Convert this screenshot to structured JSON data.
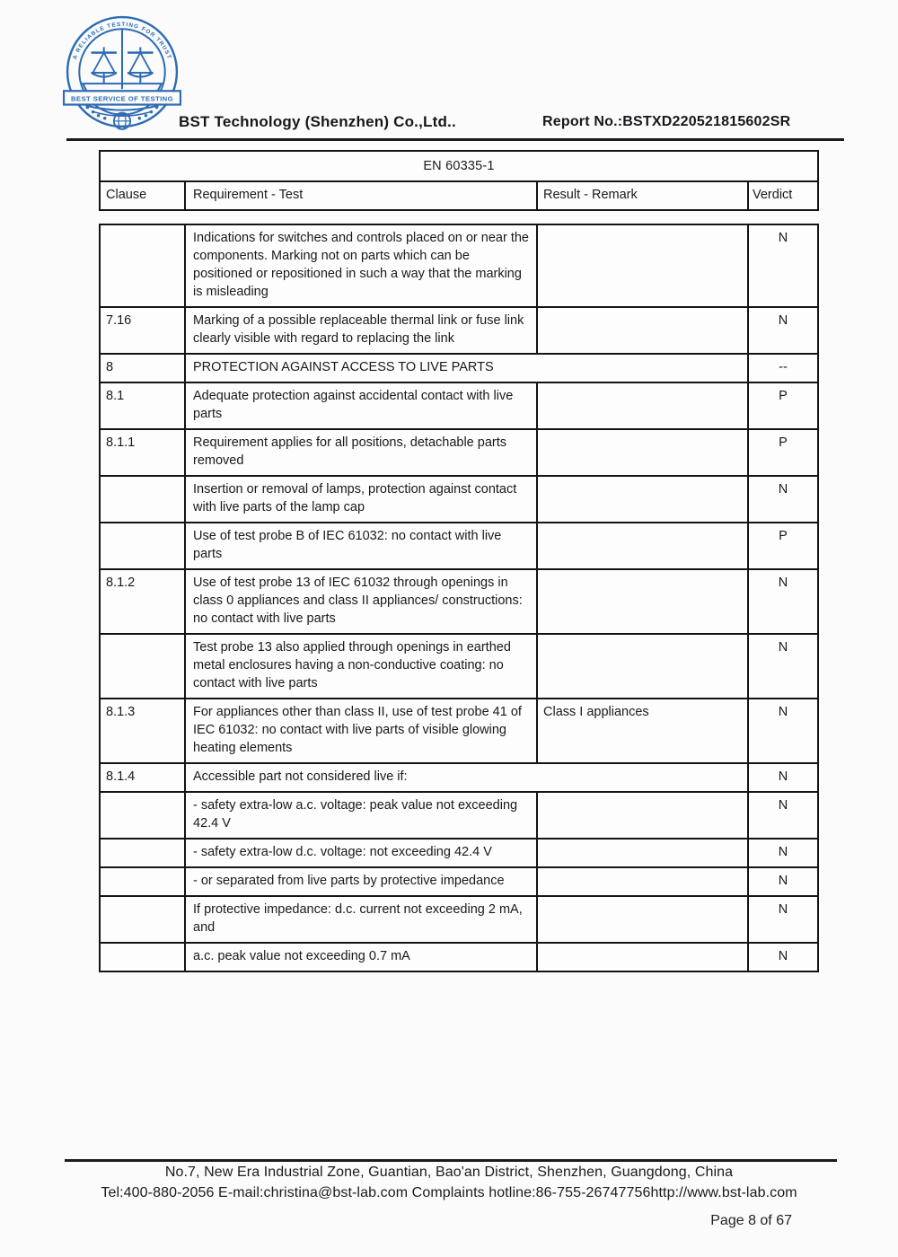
{
  "header": {
    "company": "BST Technology (Shenzhen) Co.,Ltd..",
    "report_no": "Report No.:BSTXD220521815602SR",
    "logo": {
      "arc_text": "A RELIABLE TESTING FOR TRUST",
      "banner_text": "BEST SERVICE OF TESTING",
      "color": "#2e6cb3"
    }
  },
  "table": {
    "title": "EN 60335-1",
    "columns": [
      "Clause",
      "Requirement - Test",
      "Result - Remark",
      "Verdict"
    ],
    "rows": [
      {
        "clause": "",
        "requirement": "Indications for switches and controls placed on or near the components. Marking not on parts which can be positioned or repositioned in such a way that the marking is misleading",
        "result": "",
        "verdict": "N",
        "section": false
      },
      {
        "clause": "7.16",
        "requirement": "Marking of a possible replaceable thermal link or fuse link clearly visible with regard to replacing the link",
        "result": "",
        "verdict": "N",
        "section": false
      },
      {
        "clause": "8",
        "requirement": "PROTECTION AGAINST ACCESS TO LIVE PARTS",
        "result": "",
        "verdict": "--",
        "section": true
      },
      {
        "clause": "8.1",
        "requirement": "Adequate protection against accidental contact with live parts",
        "result": "",
        "verdict": "P",
        "section": false
      },
      {
        "clause": "8.1.1",
        "requirement": "Requirement applies for all positions, detachable parts removed",
        "result": "",
        "verdict": "P",
        "section": false
      },
      {
        "clause": "",
        "requirement": "Insertion or removal of lamps, protection against contact with live parts of the lamp cap",
        "result": "",
        "verdict": "N",
        "section": false
      },
      {
        "clause": "",
        "requirement": "Use of test probe B of IEC 61032: no contact with live parts",
        "result": "",
        "verdict": "P",
        "section": false
      },
      {
        "clause": "8.1.2",
        "requirement": "Use of test probe 13 of IEC 61032 through openings in class 0 appliances and class II appliances/ constructions: no contact with live parts",
        "result": "",
        "verdict": "N",
        "section": false
      },
      {
        "clause": "",
        "requirement": "Test probe 13 also applied through openings in earthed metal enclosures having a non-conductive coating: no contact with live parts",
        "result": "",
        "verdict": "N",
        "section": false
      },
      {
        "clause": "8.1.3",
        "requirement": "For appliances other than class II, use of test probe 41 of IEC 61032: no contact with live parts of visible glowing heating elements",
        "result": "Class I appliances",
        "verdict": "N",
        "section": false
      },
      {
        "clause": "8.1.4",
        "requirement": "Accessible part not considered live if:",
        "result": "",
        "verdict": "N",
        "section": true
      },
      {
        "clause": "",
        "requirement": "- safety extra-low a.c. voltage: peak value not exceeding 42.4 V",
        "result": "",
        "verdict": "N",
        "section": false
      },
      {
        "clause": "",
        "requirement": "- safety extra-low d.c. voltage: not exceeding 42.4 V",
        "result": "",
        "verdict": "N",
        "section": false
      },
      {
        "clause": "",
        "requirement": "- or separated from live parts by protective impedance",
        "result": "",
        "verdict": "N",
        "section": false
      },
      {
        "clause": "",
        "requirement": "If protective impedance: d.c. current not exceeding 2 mA, and",
        "result": "",
        "verdict": "N",
        "section": false
      },
      {
        "clause": "",
        "requirement": "a.c. peak value not exceeding 0.7 mA",
        "result": "",
        "verdict": "N",
        "section": false
      }
    ]
  },
  "footer": {
    "address": "No.7, New Era Industrial Zone, Guantian, Bao'an District, Shenzhen, Guangdong, China",
    "contact": "Tel:400-880-2056 E-mail:christina@bst-lab.com Complaints hotline:86-755-26747756http://www.bst-lab.com",
    "page_label": "Page 8 of 67"
  }
}
